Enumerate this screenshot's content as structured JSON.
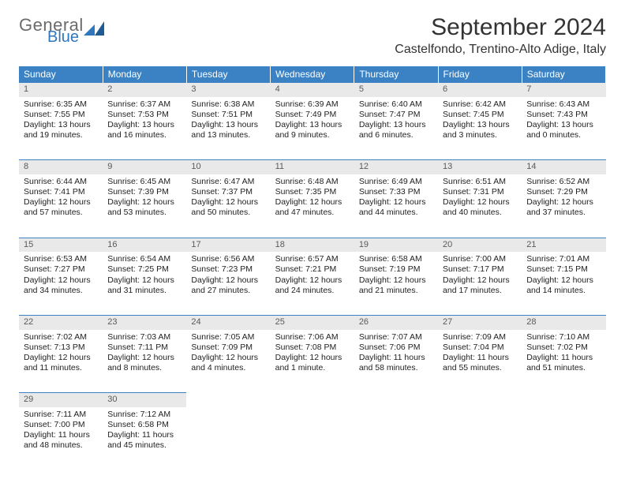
{
  "brand": {
    "general": "General",
    "blue": "Blue"
  },
  "title": "September 2024",
  "location": "Castelfondo, Trentino-Alto Adige, Italy",
  "colors": {
    "header_bg": "#3b82c4",
    "header_text": "#ffffff",
    "daynum_bg": "#e9e9e9",
    "daynum_text": "#5a5a5a",
    "body_text": "#222222",
    "logo_gray": "#6b6b6b",
    "logo_blue": "#2f77bb"
  },
  "layout": {
    "columns": 7,
    "rows": 5,
    "cell_font_size": 10.5
  },
  "weekdays": [
    "Sunday",
    "Monday",
    "Tuesday",
    "Wednesday",
    "Thursday",
    "Friday",
    "Saturday"
  ],
  "days": [
    {
      "n": 1,
      "sunrise": "6:35 AM",
      "sunset": "7:55 PM",
      "dl_h": 13,
      "dl_m": 19
    },
    {
      "n": 2,
      "sunrise": "6:37 AM",
      "sunset": "7:53 PM",
      "dl_h": 13,
      "dl_m": 16
    },
    {
      "n": 3,
      "sunrise": "6:38 AM",
      "sunset": "7:51 PM",
      "dl_h": 13,
      "dl_m": 13
    },
    {
      "n": 4,
      "sunrise": "6:39 AM",
      "sunset": "7:49 PM",
      "dl_h": 13,
      "dl_m": 9
    },
    {
      "n": 5,
      "sunrise": "6:40 AM",
      "sunset": "7:47 PM",
      "dl_h": 13,
      "dl_m": 6
    },
    {
      "n": 6,
      "sunrise": "6:42 AM",
      "sunset": "7:45 PM",
      "dl_h": 13,
      "dl_m": 3
    },
    {
      "n": 7,
      "sunrise": "6:43 AM",
      "sunset": "7:43 PM",
      "dl_h": 13,
      "dl_m": 0
    },
    {
      "n": 8,
      "sunrise": "6:44 AM",
      "sunset": "7:41 PM",
      "dl_h": 12,
      "dl_m": 57
    },
    {
      "n": 9,
      "sunrise": "6:45 AM",
      "sunset": "7:39 PM",
      "dl_h": 12,
      "dl_m": 53
    },
    {
      "n": 10,
      "sunrise": "6:47 AM",
      "sunset": "7:37 PM",
      "dl_h": 12,
      "dl_m": 50
    },
    {
      "n": 11,
      "sunrise": "6:48 AM",
      "sunset": "7:35 PM",
      "dl_h": 12,
      "dl_m": 47
    },
    {
      "n": 12,
      "sunrise": "6:49 AM",
      "sunset": "7:33 PM",
      "dl_h": 12,
      "dl_m": 44
    },
    {
      "n": 13,
      "sunrise": "6:51 AM",
      "sunset": "7:31 PM",
      "dl_h": 12,
      "dl_m": 40
    },
    {
      "n": 14,
      "sunrise": "6:52 AM",
      "sunset": "7:29 PM",
      "dl_h": 12,
      "dl_m": 37
    },
    {
      "n": 15,
      "sunrise": "6:53 AM",
      "sunset": "7:27 PM",
      "dl_h": 12,
      "dl_m": 34
    },
    {
      "n": 16,
      "sunrise": "6:54 AM",
      "sunset": "7:25 PM",
      "dl_h": 12,
      "dl_m": 31
    },
    {
      "n": 17,
      "sunrise": "6:56 AM",
      "sunset": "7:23 PM",
      "dl_h": 12,
      "dl_m": 27
    },
    {
      "n": 18,
      "sunrise": "6:57 AM",
      "sunset": "7:21 PM",
      "dl_h": 12,
      "dl_m": 24
    },
    {
      "n": 19,
      "sunrise": "6:58 AM",
      "sunset": "7:19 PM",
      "dl_h": 12,
      "dl_m": 21
    },
    {
      "n": 20,
      "sunrise": "7:00 AM",
      "sunset": "7:17 PM",
      "dl_h": 12,
      "dl_m": 17
    },
    {
      "n": 21,
      "sunrise": "7:01 AM",
      "sunset": "7:15 PM",
      "dl_h": 12,
      "dl_m": 14
    },
    {
      "n": 22,
      "sunrise": "7:02 AM",
      "sunset": "7:13 PM",
      "dl_h": 12,
      "dl_m": 11
    },
    {
      "n": 23,
      "sunrise": "7:03 AM",
      "sunset": "7:11 PM",
      "dl_h": 12,
      "dl_m": 8
    },
    {
      "n": 24,
      "sunrise": "7:05 AM",
      "sunset": "7:09 PM",
      "dl_h": 12,
      "dl_m": 4
    },
    {
      "n": 25,
      "sunrise": "7:06 AM",
      "sunset": "7:08 PM",
      "dl_h": 12,
      "dl_m": 1
    },
    {
      "n": 26,
      "sunrise": "7:07 AM",
      "sunset": "7:06 PM",
      "dl_h": 11,
      "dl_m": 58
    },
    {
      "n": 27,
      "sunrise": "7:09 AM",
      "sunset": "7:04 PM",
      "dl_h": 11,
      "dl_m": 55
    },
    {
      "n": 28,
      "sunrise": "7:10 AM",
      "sunset": "7:02 PM",
      "dl_h": 11,
      "dl_m": 51
    },
    {
      "n": 29,
      "sunrise": "7:11 AM",
      "sunset": "7:00 PM",
      "dl_h": 11,
      "dl_m": 48
    },
    {
      "n": 30,
      "sunrise": "7:12 AM",
      "sunset": "6:58 PM",
      "dl_h": 11,
      "dl_m": 45
    }
  ],
  "labels": {
    "sunrise": "Sunrise:",
    "sunset": "Sunset:",
    "daylight_prefix": "Daylight:",
    "hours_word": "hours",
    "and_word": "and",
    "minutes_word": "minutes.",
    "minute_word": "minute."
  }
}
